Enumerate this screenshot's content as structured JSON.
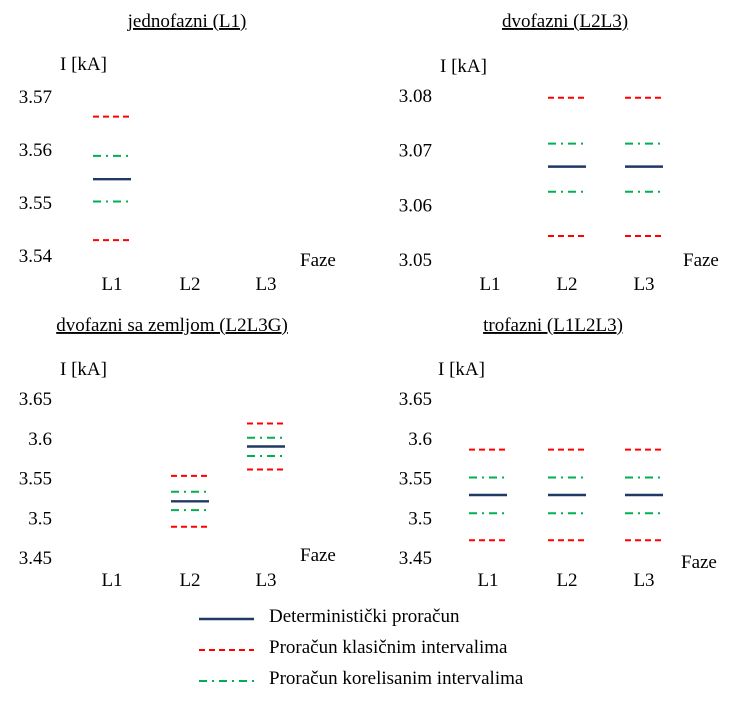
{
  "colors": {
    "deterministic": "#1f3864",
    "classic": "#ff0000",
    "correlated": "#00b050"
  },
  "legend": {
    "deterministic": "Deterministički  proračun",
    "classic": "Proračun klasičnim  intervalima",
    "correlated": "Proračun korelisanim  intervalima"
  },
  "chart_data": [
    {
      "type": "scatter",
      "title": "jednofazni  (L1)",
      "ylabel": "I [kA]",
      "xlabel": "Faze",
      "categories": [
        "L1",
        "L2",
        "L3"
      ],
      "ylim": [
        3.54,
        3.57
      ],
      "yticks": [
        "3.54",
        "3.55",
        "3.56",
        "3.57"
      ],
      "yticks_values": [
        3.54,
        3.55,
        3.56,
        3.57
      ],
      "grid": false,
      "series": [
        {
          "key": "deterministic",
          "values": [
            3.5543,
            null,
            null
          ]
        },
        {
          "key": "classic_upper",
          "values": [
            3.5661,
            null,
            null
          ]
        },
        {
          "key": "classic_lower",
          "values": [
            3.5428,
            null,
            null
          ]
        },
        {
          "key": "correlated_upper",
          "values": [
            3.5587,
            null,
            null
          ]
        },
        {
          "key": "correlated_lower",
          "values": [
            3.5501,
            null,
            null
          ]
        }
      ]
    },
    {
      "type": "scatter",
      "title": "dvofazni  (L2L3)",
      "ylabel": "I [kA]",
      "xlabel": "Faze",
      "categories": [
        "L1",
        "L2",
        "L3"
      ],
      "ylim": [
        3.05,
        3.08
      ],
      "yticks": [
        "3.05",
        "3.06",
        "3.07",
        "3.08"
      ],
      "yticks_values": [
        3.05,
        3.06,
        3.07,
        3.08
      ],
      "grid": false,
      "series": [
        {
          "key": "deterministic",
          "values": [
            null,
            3.0669,
            3.0669
          ]
        },
        {
          "key": "classic_upper",
          "values": [
            null,
            3.0795,
            3.0795
          ]
        },
        {
          "key": "classic_lower",
          "values": [
            null,
            3.0542,
            3.0542
          ]
        },
        {
          "key": "correlated_upper",
          "values": [
            null,
            3.0711,
            3.0711
          ]
        },
        {
          "key": "correlated_lower",
          "values": [
            null,
            3.0623,
            3.0623
          ]
        }
      ]
    },
    {
      "type": "scatter",
      "title": "dvofazni sa zemljom  (L2L3G)",
      "ylabel": "I [kA]",
      "xlabel": "Faze",
      "categories": [
        "L1",
        "L2",
        "L3"
      ],
      "ylim": [
        3.45,
        3.65
      ],
      "yticks": [
        "3.45",
        "3.5",
        "3.55",
        "3.6",
        "3.65"
      ],
      "yticks_values": [
        3.45,
        3.5,
        3.55,
        3.6,
        3.65
      ],
      "grid": false,
      "series": [
        {
          "key": "deterministic",
          "values": [
            null,
            3.52,
            3.589
          ]
        },
        {
          "key": "classic_upper",
          "values": [
            null,
            3.552,
            3.618
          ]
        },
        {
          "key": "classic_lower",
          "values": [
            null,
            3.488,
            3.56
          ]
        },
        {
          "key": "correlated_upper",
          "values": [
            null,
            3.532,
            3.6
          ]
        },
        {
          "key": "correlated_lower",
          "values": [
            null,
            3.509,
            3.577
          ]
        }
      ]
    },
    {
      "type": "scatter",
      "title": "trofazni  (L1L2L3)",
      "ylabel": "I [kA]",
      "xlabel": "Faze",
      "categories": [
        "L1",
        "L2",
        "L3"
      ],
      "ylim": [
        3.45,
        3.65
      ],
      "yticks": [
        "3.45",
        "3.5",
        "3.55",
        "3.6",
        "3.65"
      ],
      "yticks_values": [
        3.45,
        3.5,
        3.55,
        3.6,
        3.65
      ],
      "grid": false,
      "series": [
        {
          "key": "deterministic",
          "values": [
            3.528,
            3.528,
            3.528
          ]
        },
        {
          "key": "classic_upper",
          "values": [
            3.585,
            3.585,
            3.585
          ]
        },
        {
          "key": "classic_lower",
          "values": [
            3.471,
            3.471,
            3.471
          ]
        },
        {
          "key": "correlated_upper",
          "values": [
            3.55,
            3.55,
            3.55
          ]
        },
        {
          "key": "correlated_lower",
          "values": [
            3.505,
            3.505,
            3.505
          ]
        }
      ]
    }
  ]
}
